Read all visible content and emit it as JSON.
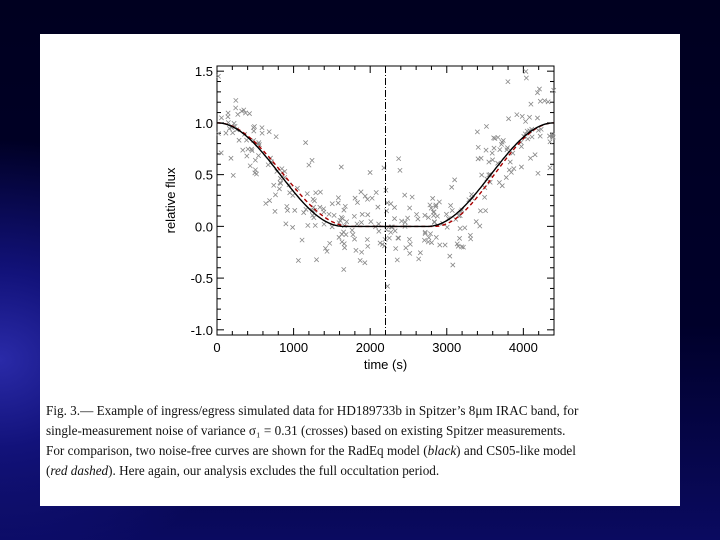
{
  "slide": {
    "background_colors": [
      "#00001a",
      "#2a2aa8"
    ]
  },
  "chart_data": {
    "type": "scatter",
    "title": "",
    "xlabel": "time (s)",
    "ylabel": "relative flux",
    "xlim": [
      0,
      4400
    ],
    "ylim": [
      -1.05,
      1.55
    ],
    "xticks": [
      0,
      1000,
      2000,
      3000,
      4000
    ],
    "xtick_labels": [
      "0",
      "1000",
      "2000",
      "3000",
      "4000"
    ],
    "yticks": [
      -1.0,
      -0.5,
      0.0,
      0.5,
      1.0,
      1.5
    ],
    "ytick_labels": [
      "-1.0",
      "-0.5",
      "0.0",
      "0.5",
      "1.0",
      "1.5"
    ],
    "vline_x": 2200,
    "model": {
      "t1": 0,
      "t2": 1650,
      "t3": 2750,
      "t4": 4400,
      "red_shift": 90
    },
    "series": [
      {
        "name": "crosses",
        "marker": "x",
        "color": "#888888",
        "n_points": 320,
        "noise_sigma": 0.31
      },
      {
        "name": "RadEq model",
        "style": "solid",
        "color": "#000000"
      },
      {
        "name": "CS05-like model",
        "style": "dashed",
        "color": "#aa0000"
      }
    ]
  },
  "caption": {
    "label": "Fig. 3.—",
    "line1": "Example of ingress/egress simulated data for HD189733b in Spitzer’s 8μm IRAC band, for",
    "line2": "single-measurement noise of variance σ₁ = 0.31 (crosses) based on existing Spitzer measurements.",
    "line3_pre": "For comparison, two noise-free curves are shown for the RadEq model (",
    "black": "black",
    "line3_mid": ") and CS05-like model",
    "paren_open": "(",
    "red_dashed": "red dashed",
    "line4_post": "). Here again, our analysis excludes the full occultation period."
  }
}
